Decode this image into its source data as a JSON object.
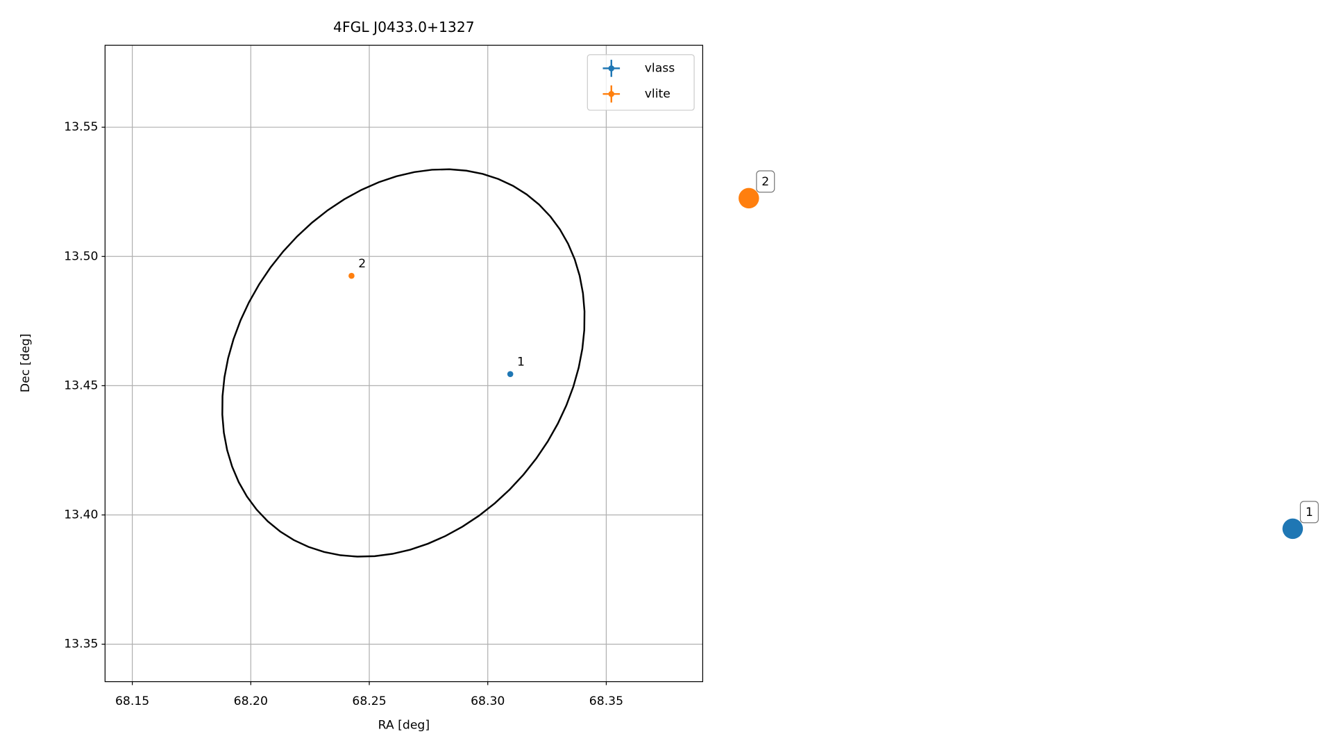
{
  "chart_data": {
    "type": "scatter",
    "title": "4FGL J0433.0+1327",
    "x_label": "RA [deg]",
    "y_label": "Dec [deg]",
    "xlim": [
      68.1385,
      68.3907
    ],
    "ylim": [
      13.3355,
      13.5817
    ],
    "xticks": [
      68.15,
      {
        "value": 68.2,
        "label": "68.20"
      },
      68.25,
      {
        "value": 68.3,
        "label": "68.30"
      },
      68.35
    ],
    "yticks": [
      13.35,
      {
        "value": 13.4,
        "label": "13.40"
      },
      13.45,
      {
        "value": 13.5,
        "label": "13.50"
      },
      13.55
    ],
    "grid": true,
    "legend": "upper right",
    "series": [
      {
        "name": "vlass",
        "color": "#1f77b4",
        "x": [
          68.3095
        ],
        "values": [
          13.4545
        ],
        "value_labels": [
          "1"
        ]
      },
      {
        "name": "vlite",
        "color": "#ff7f0e",
        "x": [
          68.2425
        ],
        "values": [
          13.4925
        ],
        "value_labels": [
          "2"
        ]
      }
    ],
    "ellipse": {
      "center": [
        68.2644,
        13.4588
      ],
      "semi_major": 0.084,
      "semi_minor": 0.0664,
      "angle": 42.5,
      "color": "#000000"
    }
  }
}
